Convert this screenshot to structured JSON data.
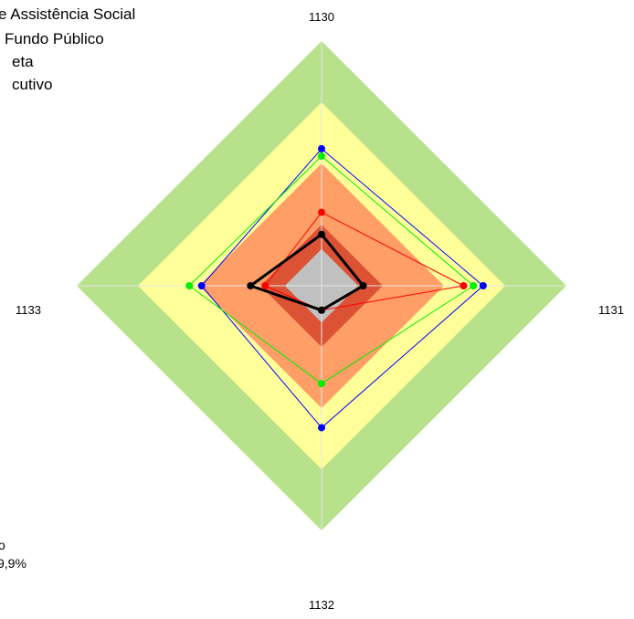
{
  "chart_data": {
    "type": "radar",
    "axes": [
      "1130",
      "1131",
      "1132",
      "1133"
    ],
    "max": 100,
    "bands": [
      {
        "level": 100,
        "color": "#B7E18B"
      },
      {
        "level": 75,
        "color": "#FFFF99"
      },
      {
        "level": 50,
        "color": "#FF9E66"
      },
      {
        "level": 25,
        "color": "#DB5234"
      },
      {
        "level": 15,
        "color": "#C0C0C0"
      }
    ],
    "legend": {
      "placement": "top-left",
      "entries": [
        "e Assistência Social",
        "Fundo Público",
        "eta",
        "cutivo"
      ]
    },
    "footnote": [
      "o",
      "9,9%"
    ],
    "series": [
      {
        "color": "#0000FF",
        "width": 1,
        "values": [
          56,
          66,
          58,
          49
        ]
      },
      {
        "color": "#00EE00",
        "width": 1,
        "values": [
          53,
          62,
          40,
          54
        ]
      },
      {
        "color": "#FF0000",
        "width": 1,
        "values": [
          30,
          58,
          10,
          23
        ]
      },
      {
        "color": "#000000",
        "width": 3,
        "values": [
          21,
          17,
          10,
          29
        ]
      }
    ]
  }
}
